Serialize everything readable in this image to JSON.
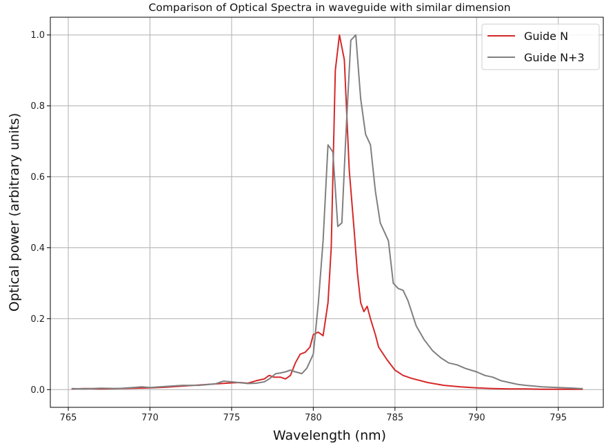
{
  "chart_data": {
    "type": "line",
    "title": "Comparison of Optical Spectra in waveguide with similar dimension",
    "xlabel": "Wavelength (nm)",
    "ylabel": "Optical power (arbitrary units)",
    "xlim": [
      763.9,
      797.8
    ],
    "ylim": [
      -0.05,
      1.05
    ],
    "xticks": [
      765,
      770,
      775,
      780,
      785,
      790,
      795
    ],
    "yticks": [
      0.0,
      0.2,
      0.4,
      0.6,
      0.8,
      1.0
    ],
    "xtick_labels": [
      "765",
      "770",
      "775",
      "780",
      "785",
      "790",
      "795"
    ],
    "ytick_labels": [
      "0.0",
      "0.2",
      "0.4",
      "0.6",
      "0.8",
      "1.0"
    ],
    "grid": true,
    "legend_position": "top-right",
    "series": [
      {
        "name": "Guide N",
        "color": "#d62728",
        "x": [
          765.2,
          766.0,
          767.0,
          768.0,
          769.0,
          770.0,
          771.0,
          772.0,
          773.0,
          774.0,
          775.0,
          775.5,
          776.0,
          776.5,
          777.0,
          777.3,
          777.6,
          778.0,
          778.3,
          778.6,
          778.9,
          779.2,
          779.5,
          779.8,
          780.0,
          780.3,
          780.6,
          780.9,
          781.1,
          781.35,
          781.6,
          781.9,
          782.2,
          782.5,
          782.7,
          782.9,
          783.1,
          783.3,
          783.5,
          783.8,
          784.0,
          784.5,
          785.0,
          785.5,
          786.0,
          787.0,
          788.0,
          789.0,
          790.0,
          791.0,
          792.0,
          793.0,
          794.0,
          795.0,
          796.0,
          796.5
        ],
        "y": [
          0.002,
          0.003,
          0.002,
          0.003,
          0.004,
          0.005,
          0.007,
          0.01,
          0.013,
          0.016,
          0.019,
          0.02,
          0.018,
          0.025,
          0.03,
          0.04,
          0.035,
          0.035,
          0.03,
          0.04,
          0.075,
          0.1,
          0.105,
          0.12,
          0.155,
          0.162,
          0.152,
          0.245,
          0.4,
          0.9,
          1.0,
          0.93,
          0.62,
          0.45,
          0.33,
          0.245,
          0.22,
          0.235,
          0.2,
          0.155,
          0.12,
          0.085,
          0.055,
          0.04,
          0.032,
          0.02,
          0.012,
          0.008,
          0.005,
          0.003,
          0.002,
          0.002,
          0.001,
          0.001,
          0.001,
          0.001
        ]
      },
      {
        "name": "Guide N+3",
        "color": "#7f7f7f",
        "x": [
          765.2,
          766.0,
          767.0,
          768.0,
          769.0,
          769.5,
          770.0,
          771.0,
          772.0,
          773.0,
          774.0,
          774.5,
          775.0,
          776.0,
          776.5,
          777.0,
          777.3,
          777.7,
          778.0,
          778.3,
          778.6,
          778.9,
          779.3,
          779.6,
          780.0,
          780.3,
          780.6,
          780.9,
          781.2,
          781.5,
          781.75,
          782.0,
          782.3,
          782.6,
          782.9,
          783.2,
          783.5,
          783.8,
          784.1,
          784.3,
          784.6,
          784.9,
          785.2,
          785.5,
          785.8,
          786.3,
          786.8,
          787.3,
          787.8,
          788.3,
          788.8,
          789.3,
          790.0,
          790.5,
          791.0,
          791.5,
          792.0,
          792.5,
          793.0,
          793.5,
          794.0,
          794.5,
          795.0,
          795.5,
          796.0,
          796.3,
          796.5
        ],
        "y": [
          0.003,
          0.002,
          0.004,
          0.003,
          0.006,
          0.008,
          0.006,
          0.009,
          0.012,
          0.012,
          0.016,
          0.024,
          0.022,
          0.017,
          0.018,
          0.022,
          0.03,
          0.045,
          0.047,
          0.05,
          0.055,
          0.05,
          0.045,
          0.06,
          0.1,
          0.24,
          0.42,
          0.69,
          0.67,
          0.46,
          0.47,
          0.72,
          0.985,
          1.0,
          0.82,
          0.72,
          0.69,
          0.56,
          0.47,
          0.45,
          0.42,
          0.3,
          0.285,
          0.28,
          0.25,
          0.18,
          0.14,
          0.11,
          0.09,
          0.075,
          0.07,
          0.06,
          0.05,
          0.04,
          0.035,
          0.025,
          0.02,
          0.015,
          0.012,
          0.01,
          0.008,
          0.007,
          0.006,
          0.005,
          0.004,
          0.003,
          0.003
        ]
      }
    ]
  }
}
